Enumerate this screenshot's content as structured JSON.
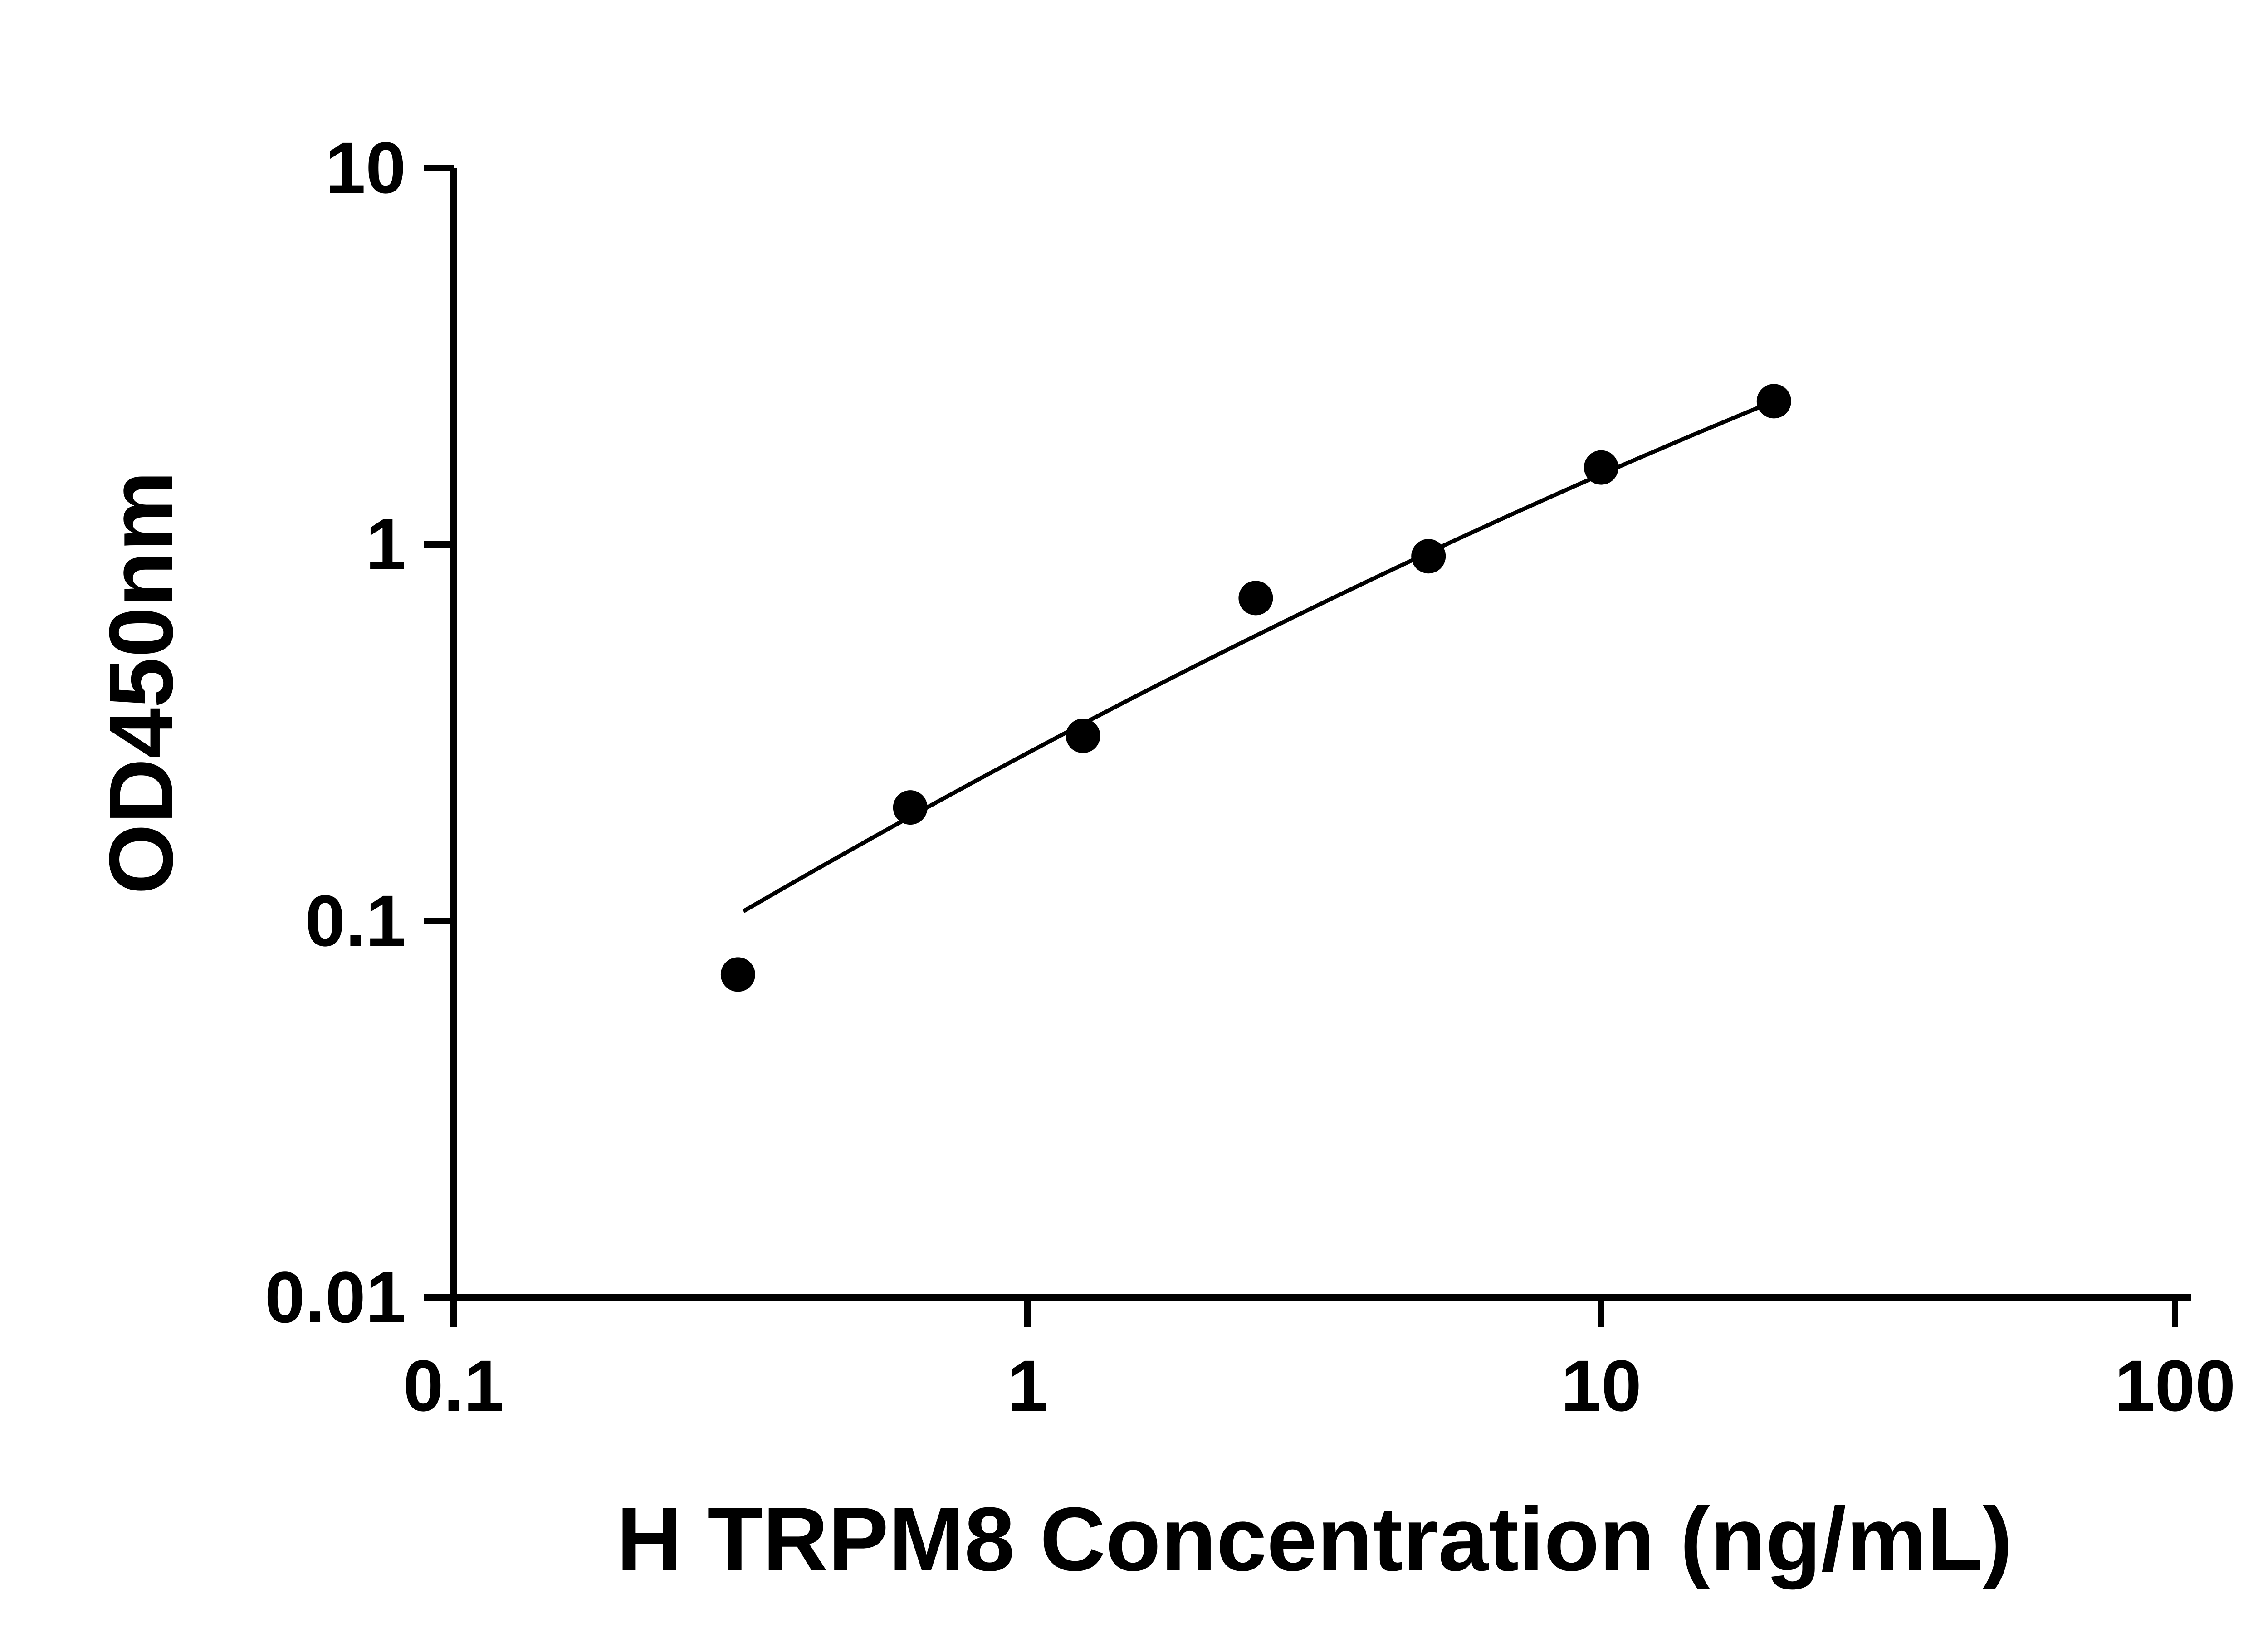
{
  "figure": {
    "background": "#ffffff",
    "foreground": "#000000"
  },
  "chart_data": {
    "type": "scatter",
    "title": "",
    "xlabel": "H TRPM8 Concentration (ng/mL)",
    "ylabel": "OD450nm",
    "x_scale": "log10",
    "y_scale": "log10",
    "xlim": [
      0.1,
      100
    ],
    "ylim": [
      0.01,
      10
    ],
    "x_ticks": [
      0.1,
      1,
      10,
      100
    ],
    "x_tick_labels": [
      "0.1",
      "1",
      "10",
      "100"
    ],
    "y_ticks": [
      0.01,
      0.1,
      1,
      10
    ],
    "y_tick_labels": [
      "0.01",
      "0.1",
      "1",
      "10"
    ],
    "grid": false,
    "legend": null,
    "series": [
      {
        "marker": "circle",
        "color": "#000000",
        "points": [
          {
            "x": 0.313,
            "y": 0.072
          },
          {
            "x": 0.625,
            "y": 0.2
          },
          {
            "x": 1.25,
            "y": 0.31
          },
          {
            "x": 2.5,
            "y": 0.72
          },
          {
            "x": 5,
            "y": 0.93
          },
          {
            "x": 10,
            "y": 1.6
          },
          {
            "x": 20,
            "y": 2.4
          }
        ]
      }
    ],
    "fit_curve": {
      "type": "quadratic_in_loglog",
      "coeffs": {
        "a": -0.5546,
        "b": 0.8126,
        "c": -0.0724
      },
      "x_range": [
        0.32,
        20
      ],
      "color": "#000000"
    }
  }
}
